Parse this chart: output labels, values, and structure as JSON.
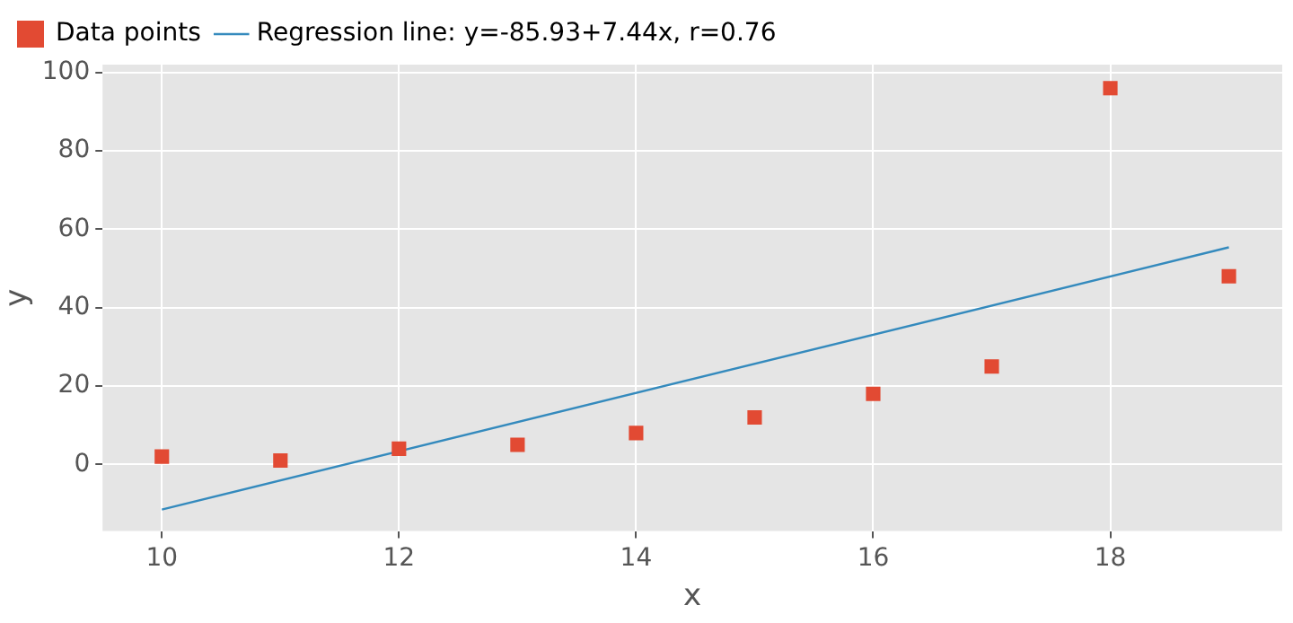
{
  "chart_data": {
    "type": "scatter",
    "xlabel": "x",
    "ylabel": "y",
    "xlim": [
      9.5,
      19.45
    ],
    "ylim": [
      -17,
      102
    ],
    "xticks": [
      10,
      12,
      14,
      16,
      18
    ],
    "yticks": [
      0,
      20,
      40,
      60,
      80,
      100
    ],
    "grid": true,
    "legend": "top left",
    "series": [
      {
        "name": "Data points",
        "marker": "square",
        "color": "#e24a33",
        "x": [
          10,
          11,
          12,
          13,
          14,
          15,
          16,
          17,
          18,
          19
        ],
        "values": [
          2,
          1,
          4,
          5,
          8,
          12,
          18,
          25,
          96,
          48
        ]
      },
      {
        "name": "Regression line: y=-85.93+7.44x, r=0.76",
        "type": "line",
        "marker": "none",
        "line_style": "solid",
        "color": "#348abd",
        "x": [
          10,
          19
        ],
        "values": [
          -11.5,
          55.4
        ]
      }
    ]
  }
}
